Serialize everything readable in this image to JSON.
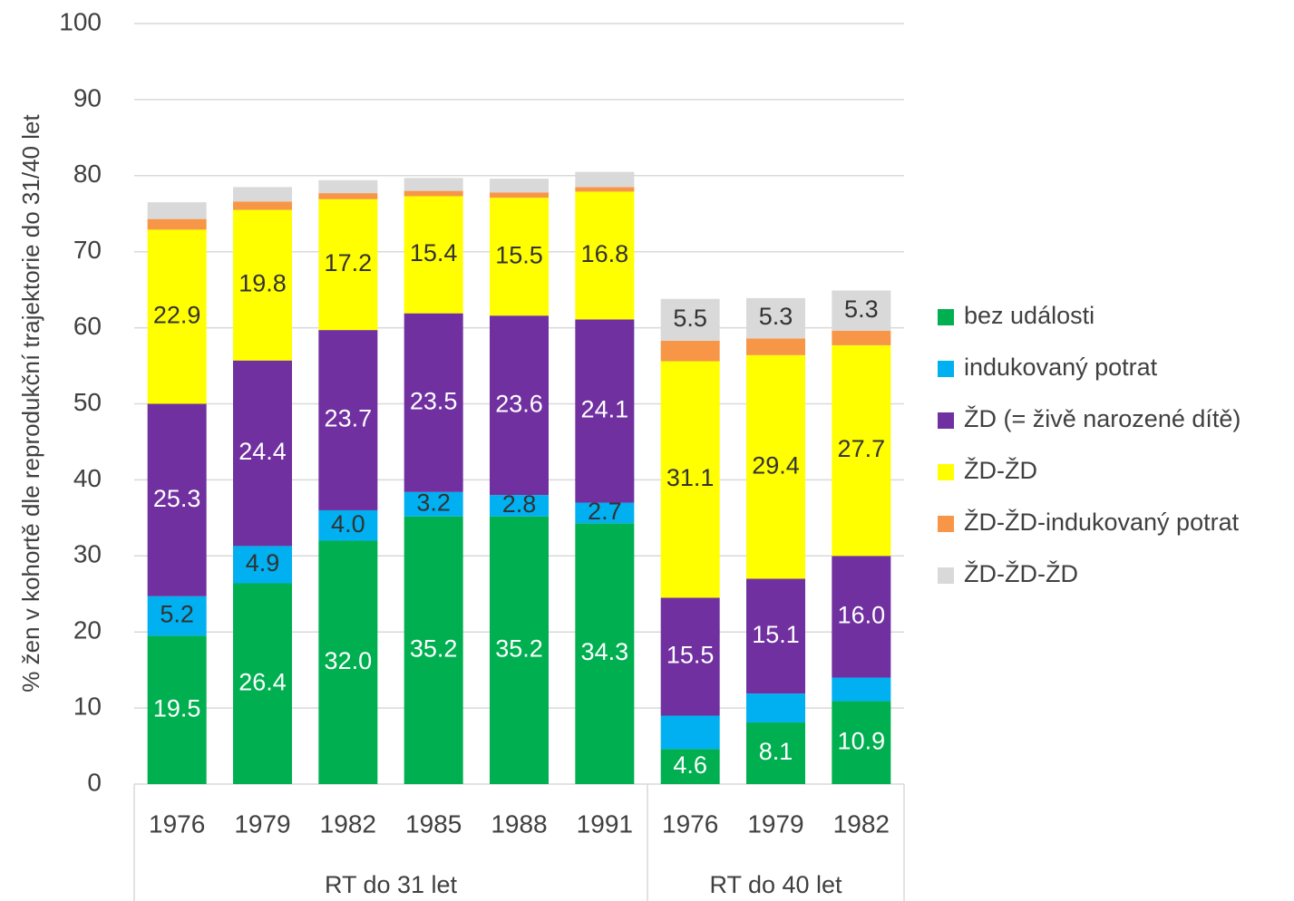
{
  "chart_data": {
    "type": "stacked_bar",
    "y_label": "% žen v kohortě dle reprodukční trajektorie do  31/40 let",
    "categories": [
      "1976",
      "1979",
      "1982",
      "1985",
      "1988",
      "1991",
      "1976",
      "1979",
      "1982"
    ],
    "groups": [
      {
        "name": "RT do 31 let",
        "span": 6
      },
      {
        "name": "RT do 40 let",
        "span": 3
      }
    ],
    "ylim": [
      0,
      100
    ],
    "yticks": [
      0,
      10,
      20,
      30,
      40,
      50,
      60,
      70,
      80,
      90,
      100
    ],
    "grid": true,
    "legend": "right",
    "series": [
      {
        "name": "bez události",
        "color": "#00b050",
        "label_color": "#ffffff",
        "values": [
          19.5,
          26.4,
          32.0,
          35.2,
          35.2,
          34.3,
          4.6,
          8.1,
          10.9
        ],
        "value_labels": [
          "19.5",
          "26.4",
          "32.0",
          "35.2",
          "35.2",
          "34.3",
          "4.6",
          "8.1",
          "10.9"
        ]
      },
      {
        "name": "indukovaný potrat",
        "color": "#00b0f0",
        "label_color": "#333333",
        "values": [
          5.2,
          4.9,
          4.0,
          3.2,
          2.8,
          2.7,
          4.4,
          3.8,
          3.1
        ],
        "value_labels": [
          "5.2",
          "4.9",
          "4.0",
          "3.2",
          "2.8",
          "2.7",
          null,
          null,
          null
        ]
      },
      {
        "name": "ŽD (= živě narozené dítě)",
        "color": "#7030a0",
        "label_color": "#ffffff",
        "values": [
          25.3,
          24.4,
          23.7,
          23.5,
          23.6,
          24.1,
          15.5,
          15.1,
          16.0
        ],
        "value_labels": [
          "25.3",
          "24.4",
          "23.7",
          "23.5",
          "23.6",
          "24.1",
          "15.5",
          "15.1",
          "16.0"
        ]
      },
      {
        "name": "ŽD-ŽD",
        "color": "#ffff00",
        "label_color": "#333333",
        "values": [
          22.9,
          19.8,
          17.2,
          15.4,
          15.5,
          16.8,
          31.1,
          29.4,
          27.7
        ],
        "value_labels": [
          "22.9",
          "19.8",
          "17.2",
          "15.4",
          "15.5",
          "16.8",
          "31.1",
          "29.4",
          "27.7"
        ]
      },
      {
        "name": "ŽD-ŽD-indukovaný potrat",
        "color": "#f79646",
        "label_color": "#333333",
        "values": [
          1.4,
          1.1,
          0.8,
          0.7,
          0.7,
          0.6,
          2.7,
          2.2,
          1.9
        ],
        "value_labels": [
          null,
          null,
          null,
          null,
          null,
          null,
          null,
          null,
          null
        ]
      },
      {
        "name": "ŽD-ŽD-ŽD",
        "color": "#d9d9d9",
        "label_color": "#333333",
        "values": [
          2.2,
          1.9,
          1.7,
          1.7,
          1.8,
          2.0,
          5.5,
          5.3,
          5.3
        ],
        "value_labels": [
          null,
          null,
          null,
          null,
          null,
          null,
          "5.5",
          "5.3",
          "5.3"
        ]
      }
    ]
  }
}
